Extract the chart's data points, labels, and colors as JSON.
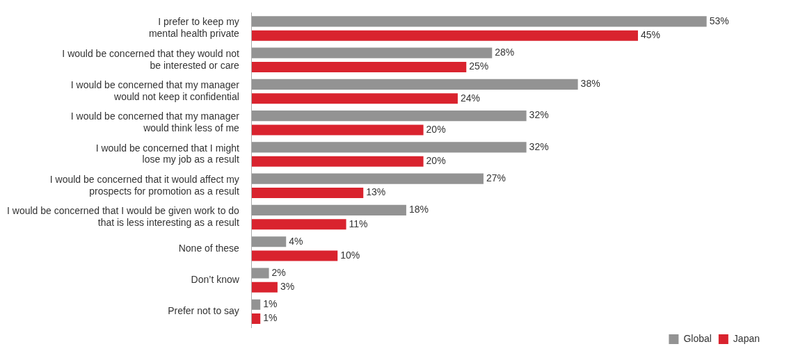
{
  "chart_data": {
    "type": "bar",
    "orientation": "horizontal",
    "categories": [
      "I prefer to keep my\nmental health private",
      "I would be concerned that they would not\nbe interested or care",
      "I would be concerned that my manager\nwould not keep it confidential",
      "I would be concerned that my manager\nwould think less of me",
      "I would be concerned that I might\nlose my job as a result",
      "I would be concerned that it would affect my\nprospects for promotion as a result",
      "I would be concerned that I would be given work to do\nthat is less interesting as a result",
      "None of these",
      "Don’t know",
      "Prefer not to say"
    ],
    "series": [
      {
        "name": "Global",
        "color": "#939393",
        "values": [
          53,
          28,
          38,
          32,
          32,
          27,
          18,
          4,
          2,
          1
        ],
        "value_labels": [
          "53%",
          "28%",
          "38%",
          "32%",
          "32%",
          "27%",
          "18%",
          "4%",
          "2%",
          "1%"
        ]
      },
      {
        "name": "Japan",
        "color": "#d9232e",
        "values": [
          45,
          25,
          24,
          20,
          20,
          13,
          11,
          10,
          3,
          1
        ],
        "value_labels": [
          "45%",
          "25%",
          "24%",
          "20%",
          "20%",
          "13%",
          "11%",
          "10%",
          "3%",
          "1%"
        ]
      }
    ],
    "legend": "bottom right",
    "tick_labels": "y"
  }
}
